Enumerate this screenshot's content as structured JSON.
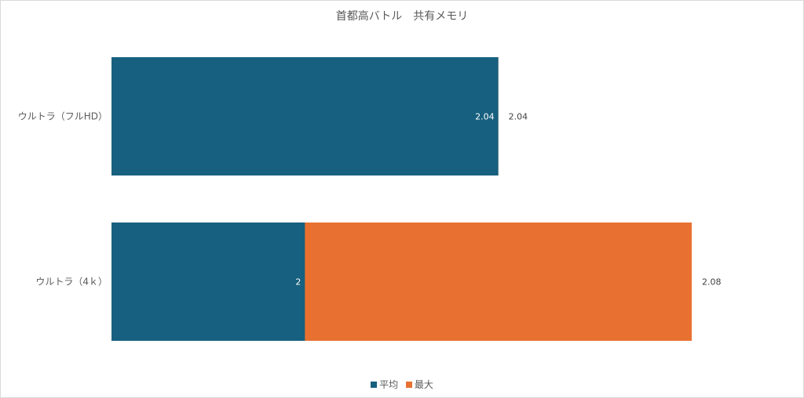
{
  "chart_data": {
    "type": "bar",
    "orientation": "horizontal",
    "title": "首都高バトル　共有メモリ",
    "categories": [
      "ウルトラ（フルHD）",
      "ウルトラ（4ｋ）"
    ],
    "series": [
      {
        "name": "平均",
        "color": "#17607f",
        "values": [
          2.04,
          2
        ],
        "labels": [
          "2.04",
          "2"
        ]
      },
      {
        "name": "最大",
        "color": "#e87132",
        "values": [
          2.04,
          2.08
        ],
        "labels": [
          "2.04",
          "2.08"
        ]
      }
    ],
    "xlim": [
      1.96,
      2.08
    ],
    "xlabel": "",
    "ylabel": "",
    "grid": false,
    "legend": "bottom"
  }
}
